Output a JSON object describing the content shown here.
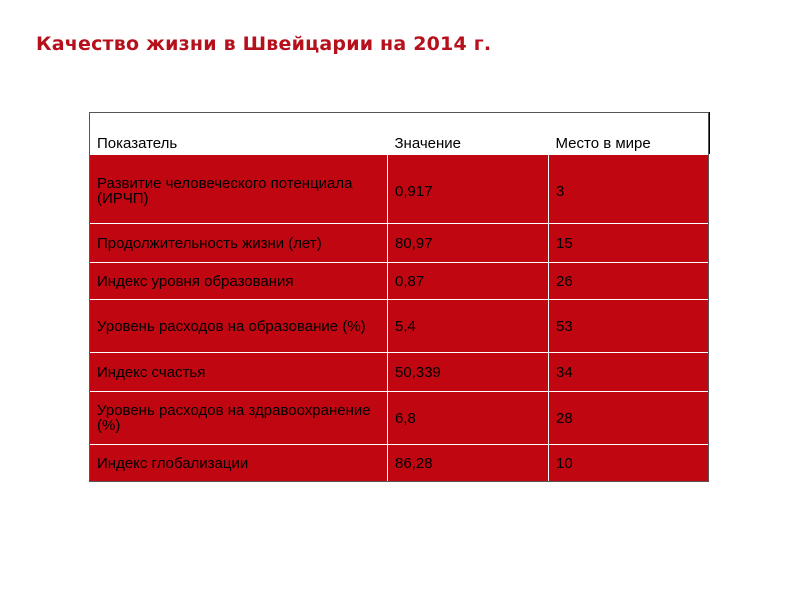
{
  "title": "Качество жизни в Швейцарии на 2014 г.",
  "colors": {
    "title": "#b5101b",
    "table_body": "#c00711",
    "header_bg": "#ffffff"
  },
  "table": {
    "headers": [
      "Показатель",
      "Значение",
      "Место в мире"
    ],
    "rows": [
      {
        "indicator": "Развитие человеческого потенциала (ИРЧП)",
        "value": "0,917",
        "rank": "3"
      },
      {
        "indicator": "Продолжительность жизни (лет)",
        "value": "80,97",
        "rank": "15"
      },
      {
        "indicator": "Индекс уровня образования",
        "value": "0,87",
        "rank": "26"
      },
      {
        "indicator": "Уровень расходов на образование (%)",
        "value": "5,4",
        "rank": "53"
      },
      {
        "indicator": "Индекс счастья",
        "value": "50,339",
        "rank": "34"
      },
      {
        "indicator": "Уровень расходов на здравоохранение (%)",
        "value": "6,8",
        "rank": "28"
      },
      {
        "indicator": "Индекс глобализации",
        "value": "86,28",
        "rank": "10"
      }
    ]
  }
}
